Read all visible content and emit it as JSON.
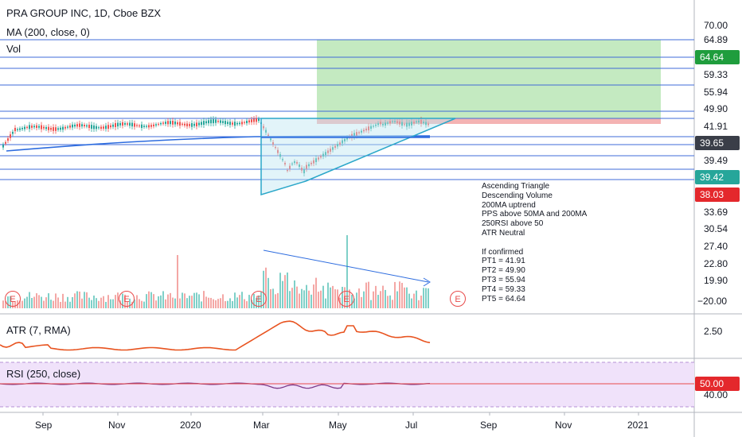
{
  "header": {
    "title": "PRA GROUP INC, 1D, Cboe BZX",
    "ma_label": "MA (200, close, 0)",
    "vol_label": "Vol"
  },
  "price_axis": {
    "labels": [
      "70.00",
      "64.89",
      "64.64",
      "59.33",
      "55.94",
      "49.90",
      "41.91",
      "39.65",
      "39.49",
      "39.42",
      "38.03",
      "33.69",
      "30.54",
      "27.40",
      "22.80",
      "19.90",
      "−20.00"
    ],
    "badges": {
      "pt5_green": "64.64",
      "last": "39.65",
      "teal": "39.42",
      "red": "38.03"
    }
  },
  "atr": {
    "label": "ATR (7, RMA)",
    "axis": "2.50"
  },
  "rsi": {
    "label": "RSI (250, close)",
    "badge": "50.00",
    "axis": "40.00"
  },
  "time_axis": [
    "Sep",
    "Nov",
    "2020",
    "Mar",
    "May",
    "Jul",
    "Sep",
    "Nov",
    "2021"
  ],
  "earnings_marker": "E",
  "notes": [
    "Ascending Triangle",
    "Descending Volume",
    "200MA uptrend",
    "PPS above 50MA and 200MA",
    "250RSI above 50",
    "ATR Neutral",
    "",
    "If confirmed",
    "PT1 = 41.91",
    "PT2 = 49.90",
    "PT3 = 55.94",
    "PT4 = 59.33",
    "PT5 = 64.64"
  ],
  "colors": {
    "level_lines": "#3f6bd8",
    "triangle": "#2aa7c9",
    "target_zone": "#a5dfa0",
    "stop_zone": "#f4b3b3",
    "atr_line": "#e8531f",
    "rsi_bg": "#f0e2fa",
    "candle_up": "#26a69a",
    "candle_down": "#ef5350"
  }
}
